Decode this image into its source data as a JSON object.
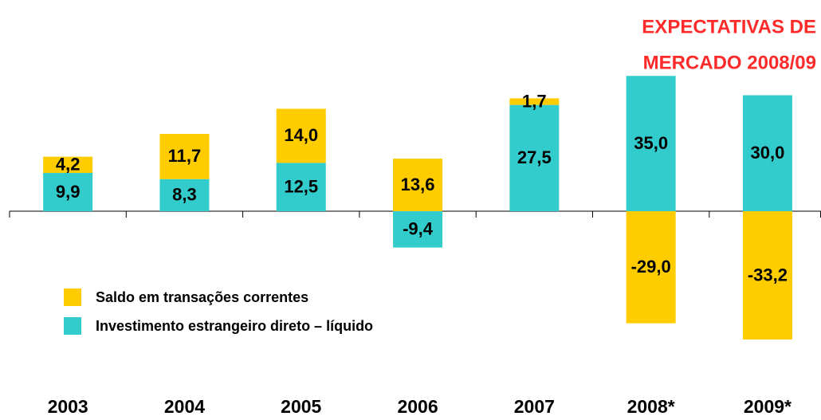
{
  "chart_data": {
    "type": "bar",
    "stacked": true,
    "annotation": [
      "EXPECTATIVAS DE",
      "MERCADO 2008/09"
    ],
    "annotation_color": "#ff2a2a",
    "categories": [
      "2003",
      "2004",
      "2005",
      "2006",
      "2007",
      "2008*",
      "2009*"
    ],
    "series": [
      {
        "name": "Investimento estrangeiro direto – líquido",
        "color": "#33cccc",
        "values": [
          9.9,
          8.3,
          12.5,
          -9.4,
          27.5,
          35.0,
          30.0
        ],
        "value_labels": [
          "9,9",
          "8,3",
          "12,5",
          "-9,4",
          "27,5",
          "35,0",
          "30,0"
        ]
      },
      {
        "name": "Saldo em transações correntes",
        "color": "#ffcc00",
        "values": [
          4.2,
          11.7,
          14.0,
          13.6,
          1.7,
          -29.0,
          -33.2
        ],
        "value_labels": [
          "4,2",
          "11,7",
          "14,0",
          "13,6",
          "1,7",
          "-29,0",
          "-33,2"
        ]
      }
    ],
    "legend_order": [
      1,
      0
    ]
  }
}
